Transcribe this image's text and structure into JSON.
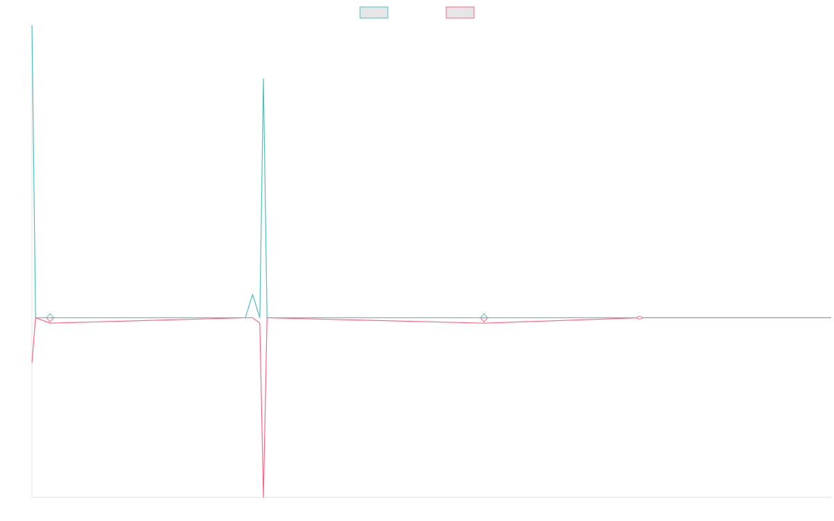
{
  "chart_data": {
    "type": "line",
    "title": "",
    "xlabel": "",
    "ylabel": "",
    "grid": false,
    "legend": "top-center",
    "ylim": [
      -1,
      1.63
    ],
    "series": [
      {
        "color": "#4bc0c0",
        "fill": "#e6e6e6",
        "points": [
          [
            0,
            1.63
          ],
          [
            1,
            0
          ],
          [
            5,
            0
          ],
          [
            59,
            0
          ],
          [
            61,
            0.13
          ],
          [
            63,
            0
          ],
          [
            64,
            1.33
          ],
          [
            65,
            0
          ],
          [
            125,
            0
          ],
          [
            168,
            0
          ],
          [
            221,
            0
          ]
        ]
      },
      {
        "color": "#ff6384",
        "fill": "#e6e6e6",
        "points": [
          [
            0,
            -0.25
          ],
          [
            1,
            0
          ],
          [
            5,
            -0.03
          ],
          [
            59,
            0
          ],
          [
            61,
            0
          ],
          [
            63,
            -0.03
          ],
          [
            64,
            -1.0
          ],
          [
            65,
            0
          ],
          [
            125,
            -0.03
          ],
          [
            168,
            0
          ],
          [
            221,
            0
          ]
        ]
      }
    ],
    "markers": [
      {
        "x": 5,
        "y": 0,
        "shape": "diamond"
      },
      {
        "x": 125,
        "y": 0,
        "shape": "diamond"
      },
      {
        "x": 168,
        "y": 0,
        "shape": "ellipse"
      }
    ]
  }
}
